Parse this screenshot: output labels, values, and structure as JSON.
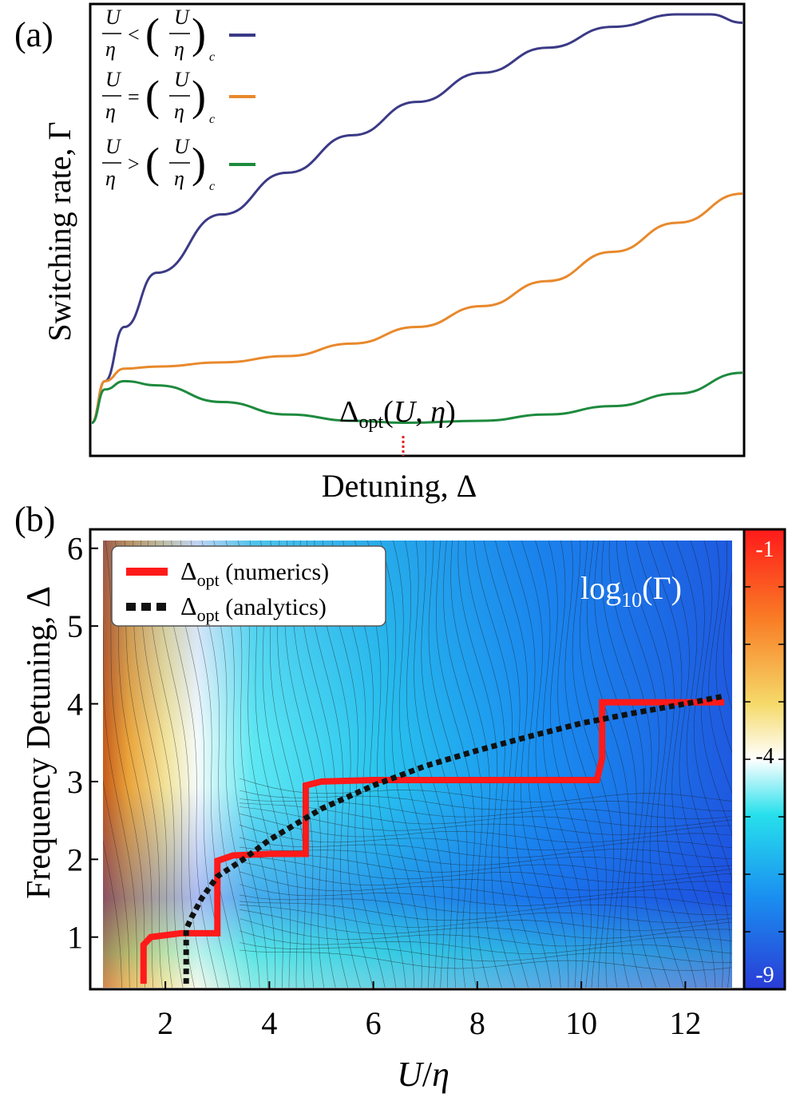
{
  "panel_a": {
    "label": "(a)",
    "xlabel": "Detuning, Δ",
    "ylabel": "Switching rate, Γ",
    "annotation": "Δopt(U, η)",
    "legend": [
      {
        "lhs": "U/η",
        "rel": "<",
        "rhs": "(U/η)c",
        "color": "#3b3a86"
      },
      {
        "lhs": "U/η",
        "rel": "=",
        "rhs": "(U/η)c",
        "color": "#e8892c"
      },
      {
        "lhs": "U/η",
        "rel": ">",
        "rhs": "(U/η)c",
        "color": "#1e8a3e"
      }
    ]
  },
  "panel_b": {
    "label": "(b)",
    "xlabel": "U/η",
    "ylabel": "Frequency Detuning, Δ",
    "colorbar_title": "log10(Γ)",
    "colorbar_ticks": [
      "-1",
      "-4",
      "-9"
    ],
    "legend": [
      {
        "name": "Δopt (numerics)",
        "color": "#ff1a1a",
        "style": "solid"
      },
      {
        "name": "Δopt (analytics)",
        "color": "#111111",
        "style": "dashed"
      }
    ],
    "xticks": [
      "2",
      "4",
      "6",
      "8",
      "10",
      "12"
    ],
    "yticks": [
      "1",
      "2",
      "3",
      "4",
      "5",
      "6"
    ]
  },
  "chart_data": [
    {
      "type": "line",
      "title": "",
      "xlabel": "Detuning, Δ",
      "ylabel": "Switching rate, Γ",
      "grid": false,
      "legend_position": "top-left",
      "series": [
        {
          "name": "U/η < (U/η)c",
          "x": [
            0,
            0.02,
            0.05,
            0.1,
            0.2,
            0.3,
            0.4,
            0.5,
            0.6,
            0.7,
            0.8,
            0.9,
            0.95,
            1.0
          ],
          "values": [
            0.02,
            0.12,
            0.25,
            0.38,
            0.52,
            0.62,
            0.71,
            0.79,
            0.86,
            0.92,
            0.97,
            1.0,
            1.0,
            0.98
          ]
        },
        {
          "name": "U/η = (U/η)c",
          "x": [
            0,
            0.02,
            0.05,
            0.1,
            0.2,
            0.3,
            0.4,
            0.5,
            0.6,
            0.7,
            0.8,
            0.9,
            1.0
          ],
          "values": [
            0.02,
            0.12,
            0.15,
            0.155,
            0.165,
            0.18,
            0.21,
            0.25,
            0.3,
            0.36,
            0.43,
            0.5,
            0.57
          ]
        },
        {
          "name": "U/η > (U/η)c",
          "x": [
            0,
            0.02,
            0.05,
            0.1,
            0.2,
            0.3,
            0.4,
            0.48,
            0.6,
            0.7,
            0.8,
            0.9,
            1.0
          ],
          "values": [
            0.02,
            0.1,
            0.12,
            0.11,
            0.07,
            0.04,
            0.025,
            0.02,
            0.025,
            0.04,
            0.06,
            0.09,
            0.14
          ]
        }
      ]
    },
    {
      "type": "heatmap",
      "title": "",
      "xlabel": "U/η",
      "ylabel": "Frequency Detuning, Δ",
      "xlim": [
        0.8,
        12.9
      ],
      "ylim": [
        0.35,
        6.1
      ],
      "colorbar": {
        "label": "log10(Γ)",
        "range": [
          -9,
          -1
        ],
        "ticks": [
          -1,
          -4,
          -9
        ]
      },
      "legend_position": "top-left",
      "series": [
        {
          "name": "Δopt (numerics)",
          "x": [
            1.58,
            1.58,
            1.72,
            2.3,
            3.0,
            3.0,
            3.3,
            4.0,
            4.7,
            4.7,
            5.0,
            6.0,
            8.0,
            10.3,
            10.4,
            10.4,
            11.0,
            12.75
          ],
          "values": [
            0.4,
            0.9,
            1.0,
            1.05,
            1.05,
            1.98,
            2.05,
            2.07,
            2.07,
            2.95,
            3.0,
            3.02,
            3.02,
            3.02,
            3.3,
            4.02,
            4.02,
            4.02
          ]
        },
        {
          "name": "Δopt (analytics)",
          "x": [
            2.4,
            2.4,
            2.5,
            2.7,
            3.0,
            3.5,
            4.0,
            5.0,
            6.0,
            7.0,
            8.0,
            9.0,
            10.0,
            11.0,
            12.0,
            12.75
          ],
          "values": [
            0.4,
            1.1,
            1.25,
            1.5,
            1.78,
            2.0,
            2.25,
            2.65,
            2.95,
            3.2,
            3.4,
            3.58,
            3.75,
            3.88,
            4.0,
            4.1
          ]
        }
      ]
    }
  ]
}
